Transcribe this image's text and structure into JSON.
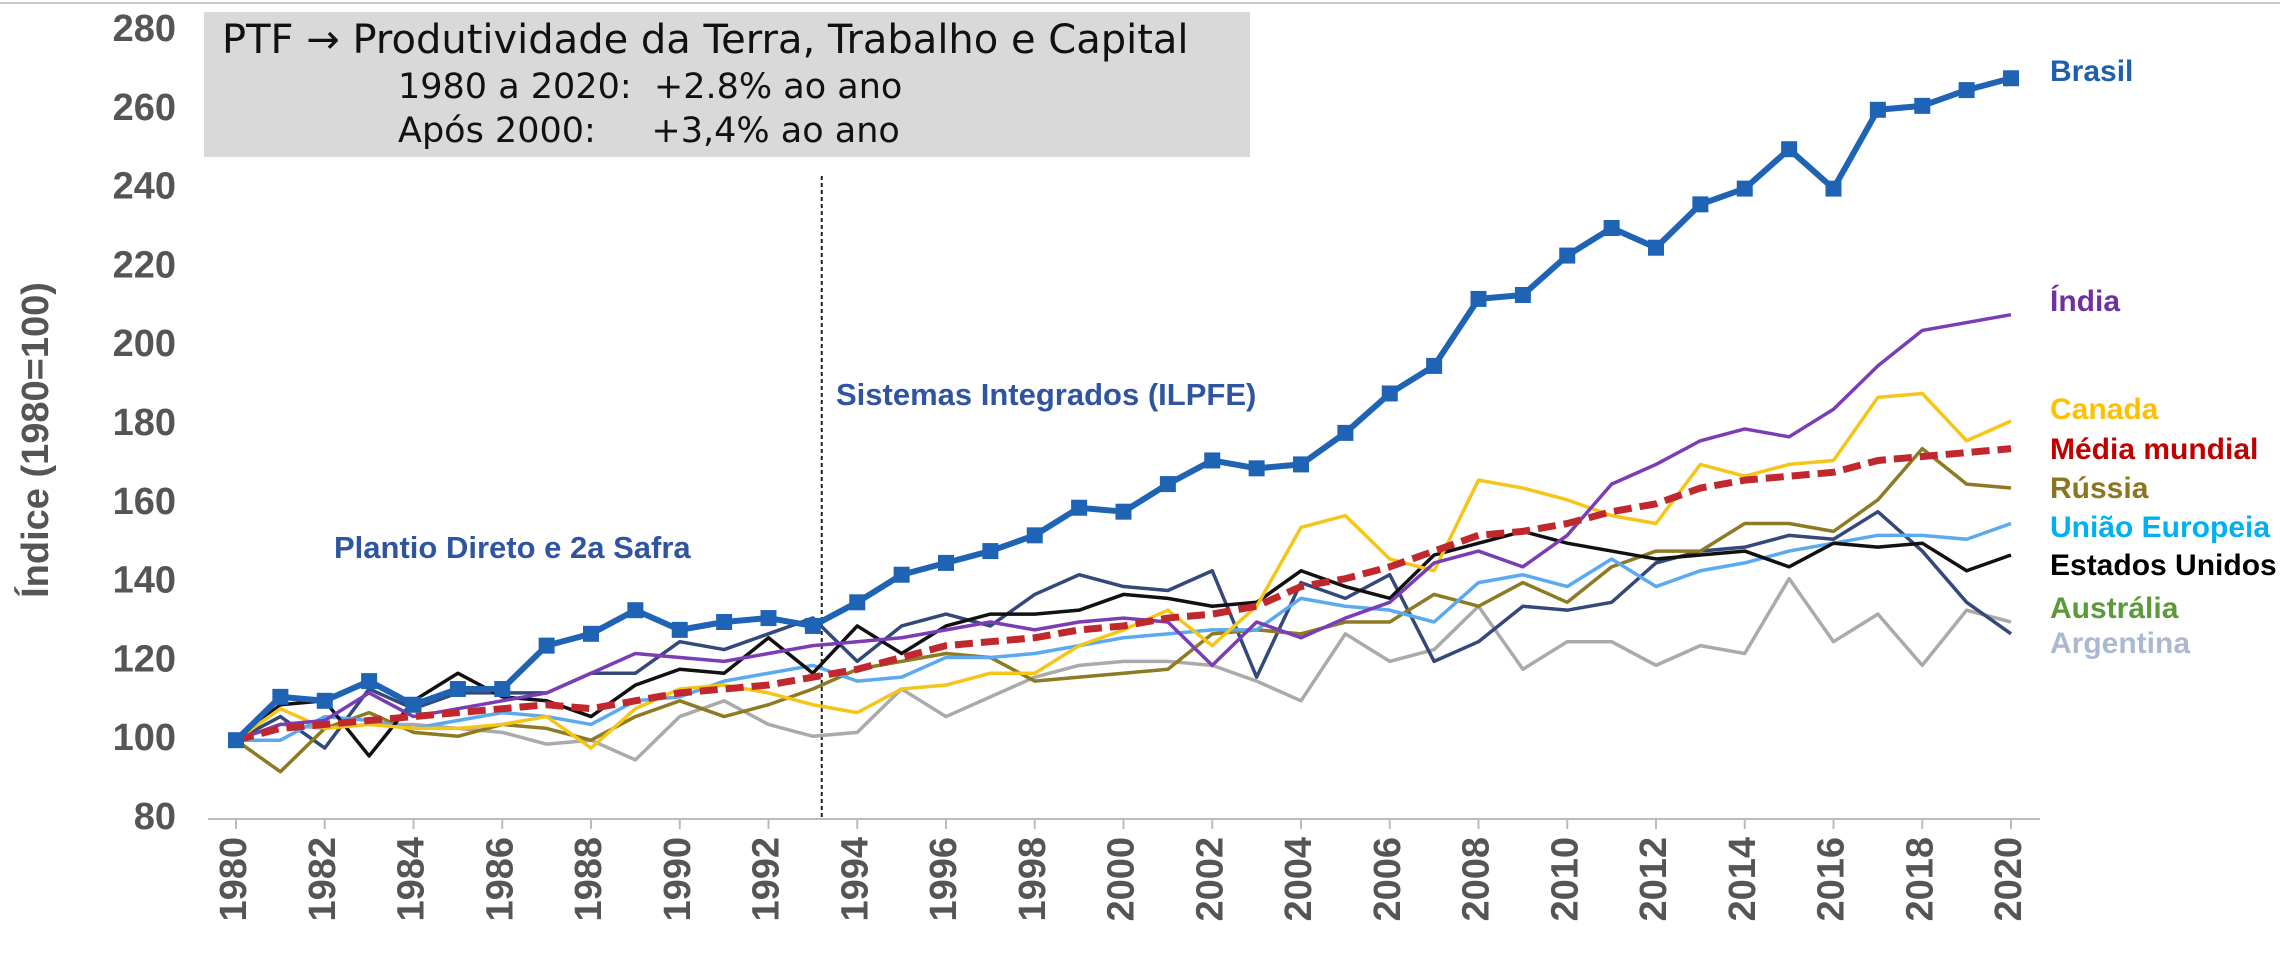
{
  "chart_data": {
    "type": "line",
    "box_lines": [
      "PTF → Produtividade da Terra, Trabalho e Capital",
      "1980 a 2020:  +2.8% ao ano",
      "Após 2000:     +3,4% ao ano"
    ],
    "ylabel": "Índice (1980=100)",
    "annotations": [
      {
        "text": "Sistemas Integrados (ILPFE)"
      },
      {
        "text": "Plantio Direto e 2a Safra"
      }
    ],
    "divider_x": 1993.2,
    "x": [
      1980,
      1981,
      1982,
      1983,
      1984,
      1985,
      1986,
      1987,
      1988,
      1989,
      1990,
      1991,
      1992,
      1993,
      1994,
      1995,
      1996,
      1997,
      1998,
      1999,
      2000,
      2001,
      2002,
      2003,
      2004,
      2005,
      2006,
      2007,
      2008,
      2009,
      2010,
      2011,
      2012,
      2013,
      2014,
      2015,
      2016,
      2017,
      2018,
      2019,
      2020
    ],
    "xlim": [
      1980,
      2020
    ],
    "xticks": [
      1980,
      1982,
      1984,
      1986,
      1988,
      1990,
      1992,
      1994,
      1996,
      1998,
      2000,
      2002,
      2004,
      2006,
      2008,
      2010,
      2012,
      2014,
      2016,
      2018,
      2020
    ],
    "ylim": [
      80,
      280
    ],
    "yticks": [
      80,
      100,
      120,
      140,
      160,
      180,
      200,
      220,
      240,
      260,
      280
    ],
    "series": [
      {
        "name": "Argentina",
        "color": "#aaaaaa",
        "label_color": "#aab8d0",
        "values": [
          100,
          104,
          103,
          104,
          104,
          103,
          102,
          99,
          100,
          95,
          106,
          110,
          104,
          101,
          102,
          113,
          106,
          111,
          116,
          119,
          120,
          120,
          119,
          115,
          110,
          127,
          120,
          123,
          134,
          118,
          125,
          125,
          119,
          124,
          122,
          141,
          125,
          132,
          119,
          133,
          130
        ]
      },
      {
        "name": "Austrália",
        "color": "#34497a",
        "label_color": "#5a9a3a",
        "values": [
          100,
          106,
          98,
          113,
          108,
          112,
          112,
          112,
          117,
          117,
          125,
          123,
          127,
          131,
          120,
          129,
          132,
          129,
          137,
          142,
          139,
          138,
          143,
          116,
          140,
          136,
          142,
          120,
          125,
          134,
          133,
          135,
          145,
          148,
          149,
          152,
          151,
          158,
          148,
          135,
          127
        ]
      },
      {
        "name": "Rússia",
        "color": "#8d7a22",
        "label_color": "#8b7520",
        "values": [
          100,
          92,
          103,
          107,
          102,
          101,
          104,
          103,
          100,
          106,
          110,
          106,
          109,
          113,
          118,
          120,
          122,
          121,
          115,
          116,
          117,
          118,
          127,
          128,
          127,
          130,
          130,
          137,
          134,
          140,
          135,
          144,
          148,
          148,
          155,
          155,
          153,
          161,
          174,
          165,
          164
        ]
      },
      {
        "name": "União Europeia",
        "color": "#5aaaf0",
        "label_color": "#00b0f0",
        "values": [
          100,
          100,
          106,
          105,
          103,
          105,
          107,
          106,
          104,
          110,
          111,
          115,
          117,
          119,
          115,
          116,
          121,
          121,
          122,
          124,
          126,
          127,
          128,
          128,
          136,
          134,
          133,
          130,
          140,
          142,
          139,
          146,
          139,
          143,
          145,
          148,
          150,
          152,
          152,
          151,
          155
        ]
      },
      {
        "name": "Estados Unidos",
        "color": "#111111",
        "label_color": "#000000",
        "values": [
          100,
          109,
          110,
          96,
          110,
          117,
          111,
          110,
          106,
          114,
          118,
          117,
          126,
          117,
          129,
          122,
          129,
          132,
          132,
          133,
          137,
          136,
          134,
          135,
          143,
          139,
          136,
          147,
          150,
          153,
          150,
          148,
          146,
          147,
          148,
          144,
          150,
          149,
          150,
          143,
          147
        ]
      },
      {
        "name": "Canada",
        "color": "#f5c518",
        "label_color": "#ffc000",
        "values": [
          100,
          108,
          103,
          104,
          103,
          103,
          104,
          106,
          98,
          108,
          113,
          114,
          112,
          109,
          107,
          113,
          114,
          117,
          117,
          124,
          128,
          133,
          124,
          134,
          154,
          157,
          146,
          143,
          166,
          164,
          161,
          157,
          155,
          170,
          167,
          170,
          171,
          187,
          188,
          176,
          181
        ]
      },
      {
        "name": "Índia",
        "color": "#7a3db5",
        "label_color": "#7030a0",
        "values": [
          100,
          104,
          105,
          112,
          106,
          108,
          110,
          112,
          117,
          122,
          121,
          120,
          122,
          124,
          125,
          126,
          128,
          130,
          128,
          130,
          131,
          130,
          119,
          130,
          126,
          131,
          135,
          145,
          148,
          144,
          152,
          165,
          170,
          176,
          179,
          177,
          184,
          195,
          204,
          206,
          208
        ]
      },
      {
        "name": "Média mundial",
        "color": "#c0282d",
        "label_color": "#c00000",
        "dashed": true,
        "values": [
          100,
          103,
          104,
          105,
          106,
          107,
          108,
          109,
          108,
          110,
          112,
          113,
          114,
          116,
          118,
          121,
          124,
          125,
          126,
          128,
          129,
          131,
          132,
          134,
          139,
          141,
          144,
          148,
          152,
          153,
          155,
          158,
          160,
          164,
          166,
          167,
          168,
          171,
          172,
          173,
          174
        ]
      },
      {
        "name": "Brasil",
        "color": "#1f63b5",
        "label_color": "#1f5fad",
        "markers": true,
        "values": [
          100,
          111,
          110,
          115,
          109,
          113,
          113,
          124,
          127,
          133,
          128,
          130,
          131,
          129,
          135,
          142,
          145,
          148,
          152,
          159,
          158,
          165,
          171,
          169,
          170,
          178,
          188,
          195,
          212,
          213,
          223,
          230,
          225,
          236,
          240,
          250,
          240,
          260,
          261,
          265,
          268
        ]
      }
    ]
  }
}
